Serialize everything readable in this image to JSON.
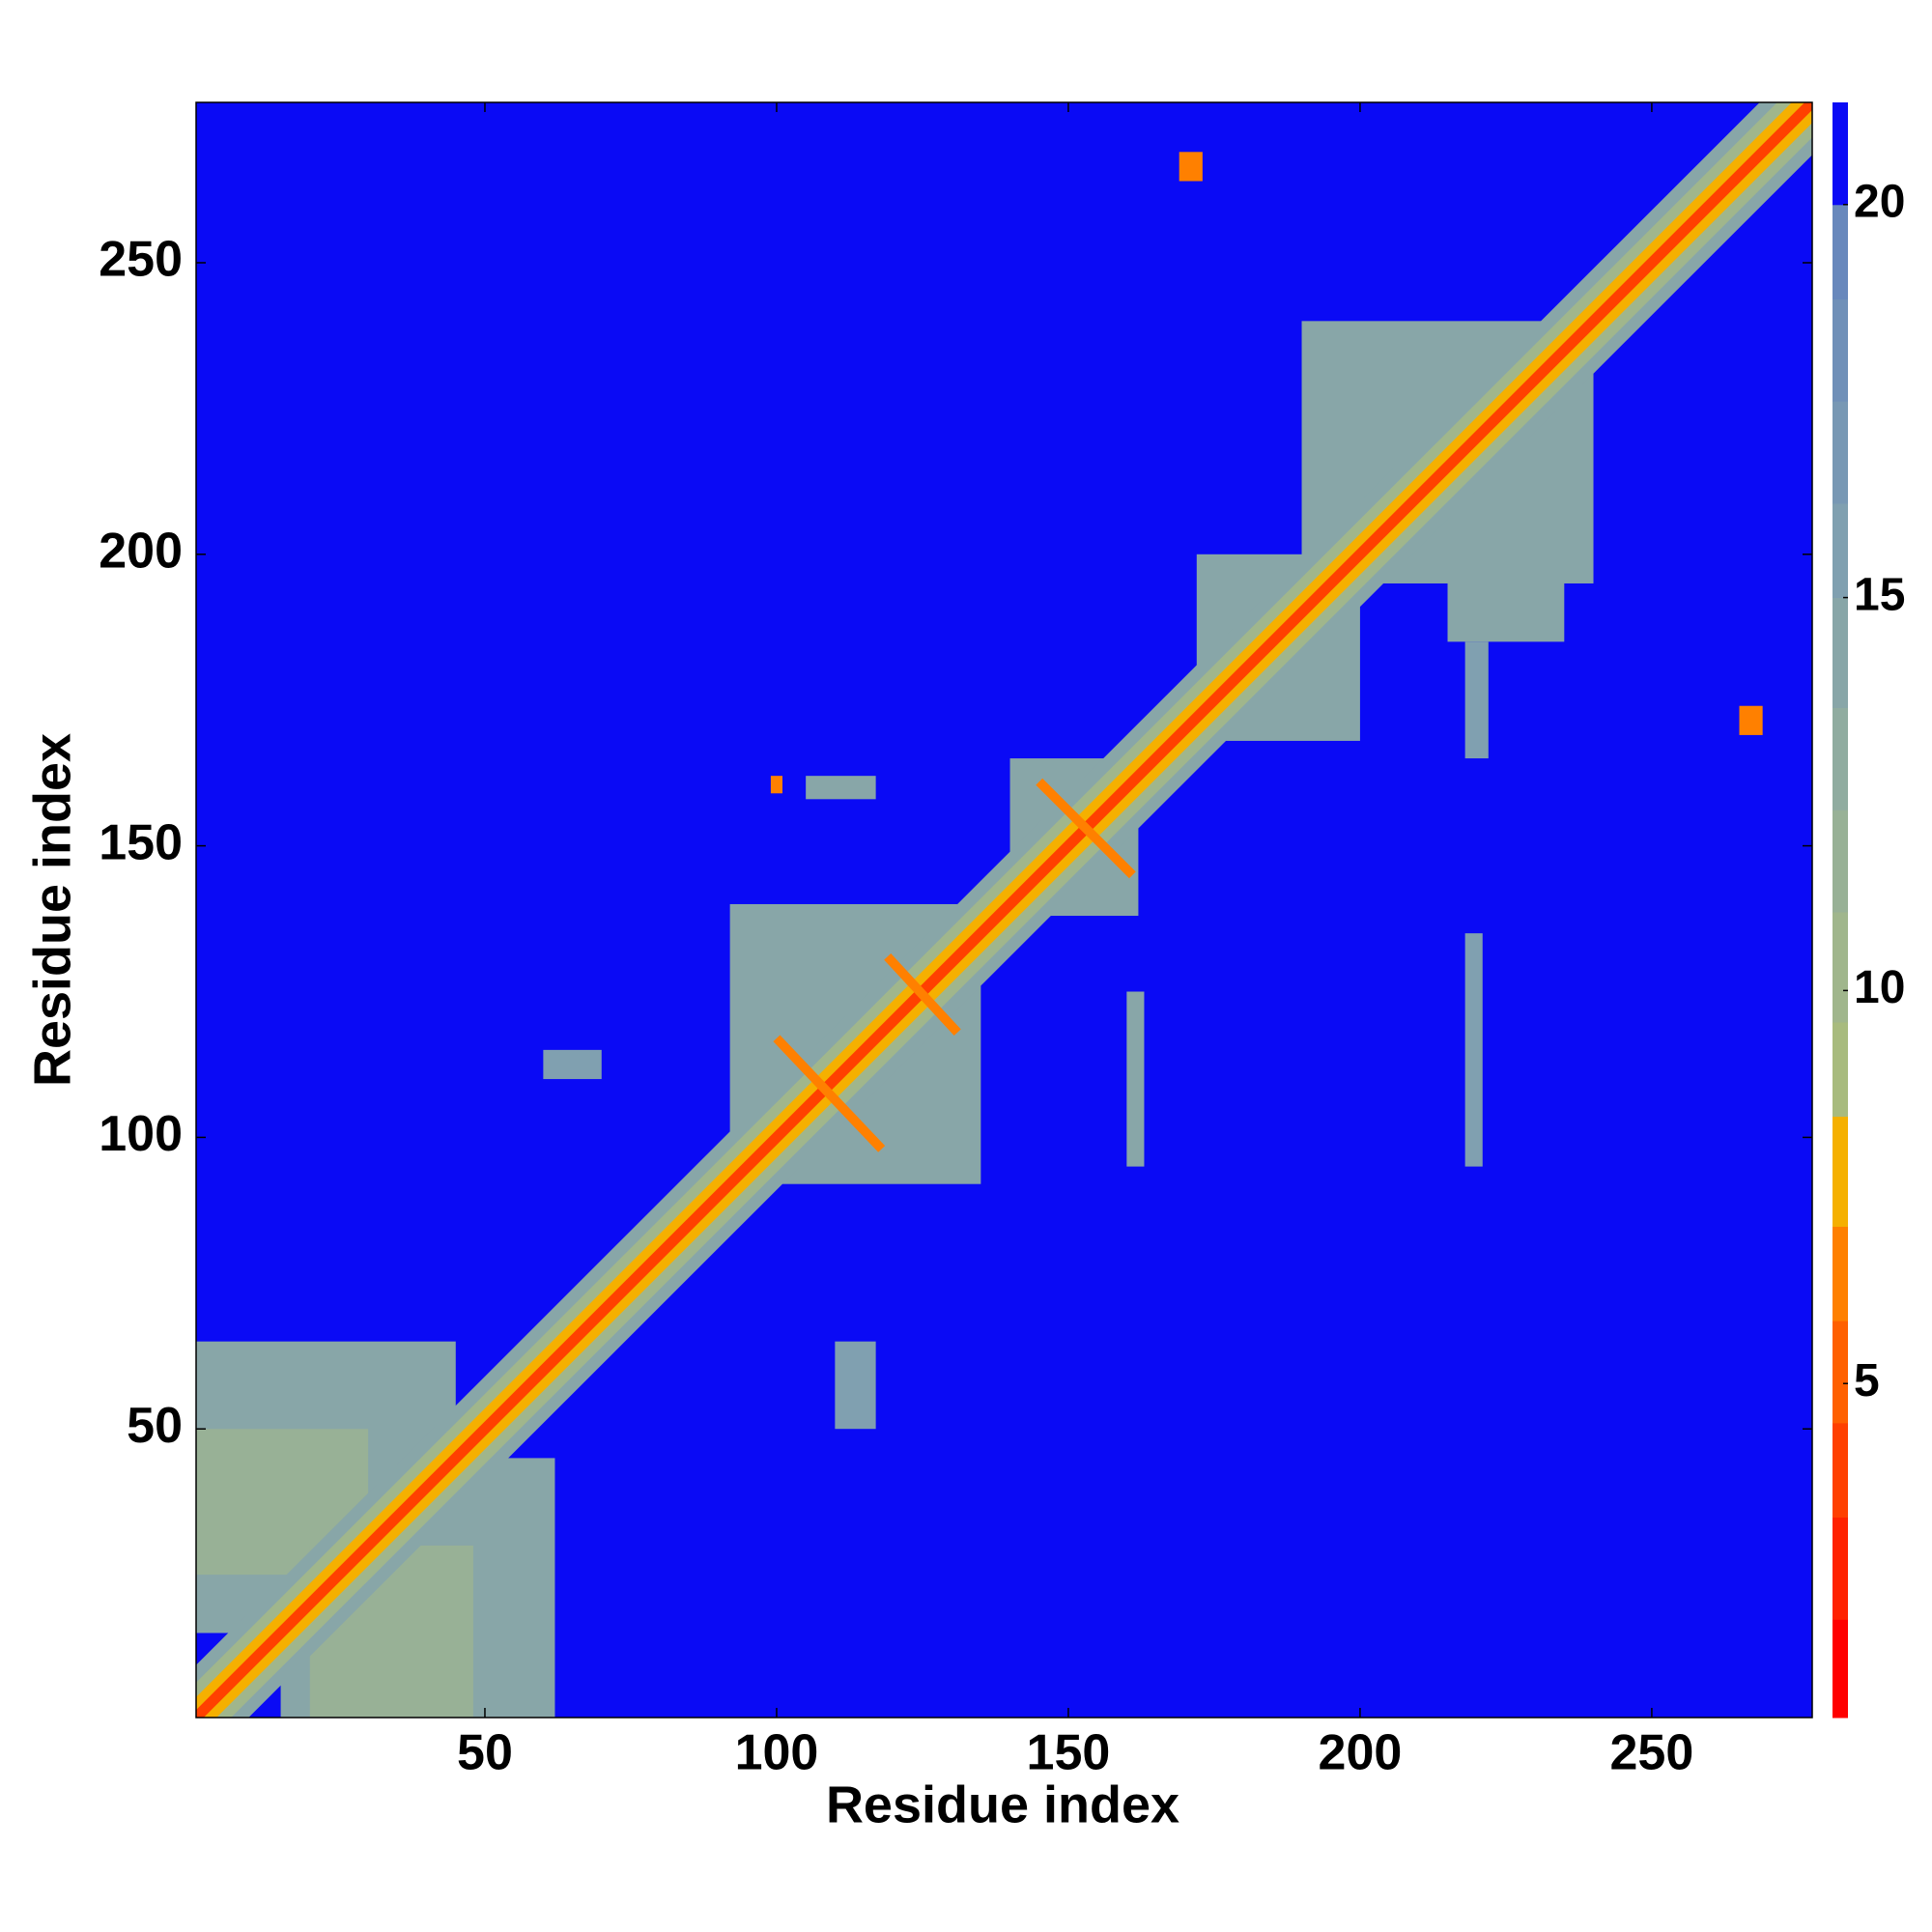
{
  "chart_data": {
    "type": "heatmap",
    "xlabel": "Residue index",
    "ylabel": "Residue index",
    "xlim": [
      0.5,
      277.5
    ],
    "ylim": [
      0.5,
      277.5
    ],
    "xticks": [
      50,
      100,
      150,
      200,
      250
    ],
    "yticks": [
      50,
      100,
      150,
      200,
      250
    ],
    "background_value": 21.3,
    "patches": [
      {
        "x": [
          0.5,
          45
        ],
        "y": [
          15,
          65
        ],
        "value": 14
      },
      {
        "x": [
          15,
          62
        ],
        "y": [
          0.5,
          45
        ],
        "value": 14
      },
      {
        "x": [
          0.5,
          30
        ],
        "y": [
          25,
          50
        ],
        "value": 12
      },
      {
        "x": [
          20,
          48
        ],
        "y": [
          0.5,
          30
        ],
        "value": 12
      },
      {
        "x": [
          92,
          135
        ],
        "y": [
          92,
          140
        ],
        "value": 15
      },
      {
        "x": [
          140,
          162
        ],
        "y": [
          138,
          165
        ],
        "value": 14
      },
      {
        "x": [
          172,
          200
        ],
        "y": [
          168,
          200
        ],
        "value": 14
      },
      {
        "x": [
          190,
          240
        ],
        "y": [
          195,
          240
        ],
        "value": 15
      },
      {
        "x": [
          215,
          235
        ],
        "y": [
          185,
          215
        ],
        "value": 14
      },
      {
        "x": [
          218,
          221
        ],
        "y": [
          95,
          135
        ],
        "value": 16
      },
      {
        "x": [
          218,
          222
        ],
        "y": [
          165,
          185
        ],
        "value": 16
      },
      {
        "x": [
          60,
          70
        ],
        "y": [
          110,
          115
        ],
        "value": 16
      },
      {
        "x": [
          105,
          117
        ],
        "y": [
          158,
          162
        ],
        "value": 14
      },
      {
        "x": [
          160,
          163
        ],
        "y": [
          95,
          125
        ],
        "value": 14
      },
      {
        "x": [
          110,
          117
        ],
        "y": [
          50,
          65
        ],
        "value": 16
      }
    ],
    "bands": [
      {
        "from": 0.5,
        "to": 277.5,
        "half_width": 9,
        "value": 15
      },
      {
        "from": 0.5,
        "to": 277.5,
        "half_width": 6,
        "value": 11
      },
      {
        "from": 0.5,
        "to": 277.5,
        "half_width": 3.5,
        "value": 7.5
      },
      {
        "from": 0.5,
        "to": 277.5,
        "half_width": 1.3,
        "value": 3.5
      }
    ],
    "segments": [
      {
        "from": [
          100,
          117
        ],
        "to": [
          118,
          98
        ],
        "value": 6.5
      },
      {
        "from": [
          119,
          131
        ],
        "to": [
          131,
          118
        ],
        "value": 6.5
      },
      {
        "from": [
          145,
          161
        ],
        "to": [
          161,
          145
        ],
        "value": 6.5
      }
    ],
    "spots": [
      {
        "x": [
          169,
          173
        ],
        "y": [
          264,
          269
        ],
        "value": 6.5
      },
      {
        "x": [
          265,
          269
        ],
        "y": [
          169,
          174
        ],
        "value": 6.5
      },
      {
        "x": [
          99,
          101
        ],
        "y": [
          159,
          162
        ],
        "value": 6
      }
    ],
    "colorbar": {
      "range": [
        0.75,
        21.3
      ],
      "ticks": [
        5,
        10,
        15,
        20
      ],
      "levels": [
        {
          "max": 2.0,
          "color": "#ff0000"
        },
        {
          "max": 3.3,
          "color": "#ff2200"
        },
        {
          "max": 4.5,
          "color": "#ff4000"
        },
        {
          "max": 5.8,
          "color": "#ff6000"
        },
        {
          "max": 7.0,
          "color": "#ff8000"
        },
        {
          "max": 8.4,
          "color": "#f5b000"
        },
        {
          "max": 9.6,
          "color": "#a8bb7e"
        },
        {
          "max": 11.0,
          "color": "#a0b68c"
        },
        {
          "max": 12.3,
          "color": "#98b196"
        },
        {
          "max": 13.6,
          "color": "#90aca0"
        },
        {
          "max": 15.0,
          "color": "#88a6a8"
        },
        {
          "max": 16.2,
          "color": "#80a0b0"
        },
        {
          "max": 17.5,
          "color": "#7898b4"
        },
        {
          "max": 18.8,
          "color": "#7090b8"
        },
        {
          "max": 20.0,
          "color": "#6888bc"
        },
        {
          "max": 21.3,
          "color": "#0a0af5"
        }
      ]
    }
  }
}
